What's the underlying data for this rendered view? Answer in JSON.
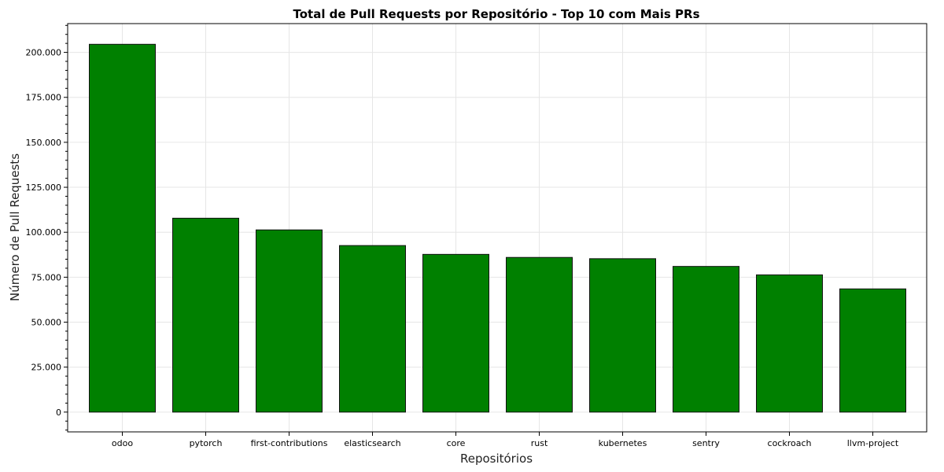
{
  "chart_data": {
    "type": "bar",
    "title": "Total de Pull Requests por Repositório - Top 10 com Mais PRs",
    "xlabel": "Repositórios",
    "ylabel": "Número de Pull Requests",
    "categories": [
      "odoo",
      "pytorch",
      "first-contributions",
      "elasticsearch",
      "core",
      "rust",
      "kubernetes",
      "sentry",
      "cockroach",
      "llvm-project"
    ],
    "values": [
      204500,
      107800,
      101300,
      92600,
      87700,
      86000,
      85300,
      81000,
      76300,
      68500
    ],
    "ylim": [
      -11000,
      216000
    ],
    "yticks": [
      0,
      25000,
      50000,
      75000,
      100000,
      125000,
      150000,
      175000,
      200000
    ],
    "ytick_labels": [
      "0",
      "25.000",
      "50.000",
      "75.000",
      "100.000",
      "125.000",
      "150.000",
      "175.000",
      "200.000"
    ],
    "grid": true,
    "colors": {
      "bar": "#008000",
      "edge": "#111111"
    }
  }
}
